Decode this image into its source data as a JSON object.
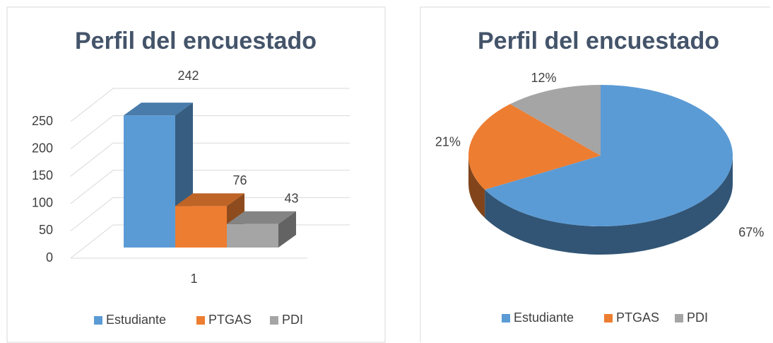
{
  "chart_data": [
    {
      "type": "bar",
      "title": "Perfil del encuestado",
      "categories": [
        "1"
      ],
      "series": [
        {
          "name": "Estudiante",
          "color": "#5b9bd5",
          "values": [
            242
          ]
        },
        {
          "name": "PTGAS",
          "color": "#ed7d31",
          "values": [
            76
          ]
        },
        {
          "name": "PDI",
          "color": "#a5a5a5",
          "values": [
            43
          ]
        }
      ],
      "ylim": [
        0,
        250
      ],
      "yticks": [
        0,
        50,
        100,
        150,
        200,
        250
      ],
      "grid": true,
      "legend": "bottom"
    },
    {
      "type": "pie",
      "title": "Perfil del encuestado",
      "categories": [
        "Estudiante",
        "PTGAS",
        "PDI"
      ],
      "values": [
        67,
        21,
        12
      ],
      "value_labels": [
        "67%",
        "21%",
        "12%"
      ],
      "colors": [
        "#5b9bd5",
        "#ed7d31",
        "#a5a5a5"
      ],
      "legend": "bottom"
    }
  ]
}
